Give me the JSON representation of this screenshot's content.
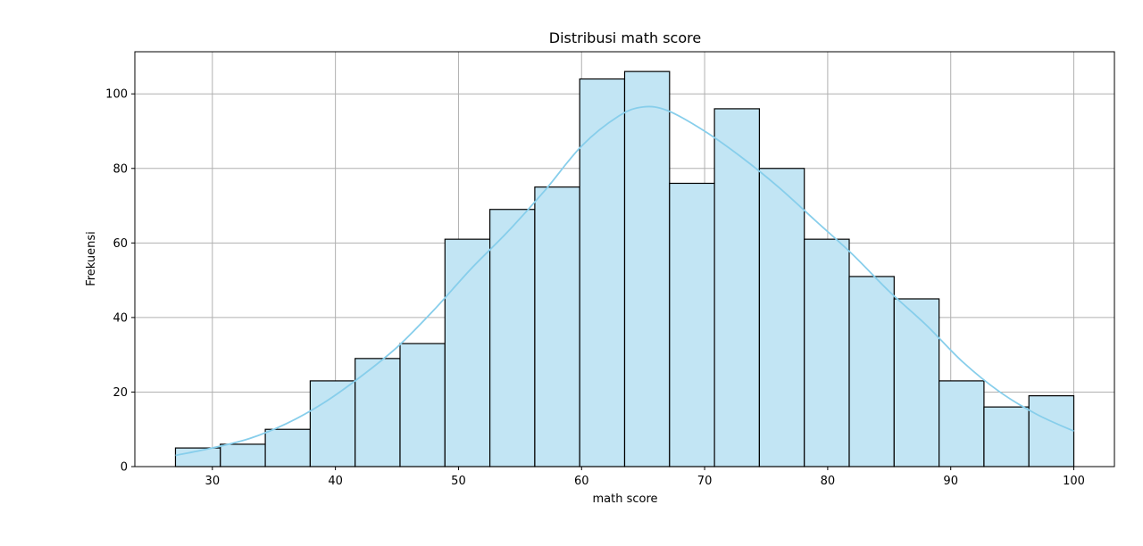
{
  "chart_data": {
    "type": "bar",
    "title": "Distribusi math score",
    "xlabel": "math score",
    "ylabel": "Frekuensi",
    "xlim": [
      23.7,
      103.3
    ],
    "ylim": [
      0,
      111.3
    ],
    "xticks": [
      30,
      40,
      50,
      60,
      70,
      80,
      90,
      100
    ],
    "yticks": [
      0,
      20,
      40,
      60,
      80,
      100
    ],
    "grid": true,
    "bin_edges": [
      27,
      30.65,
      34.3,
      37.95,
      41.6,
      45.25,
      48.9,
      52.55,
      56.2,
      59.85,
      63.5,
      67.15,
      70.8,
      74.45,
      78.1,
      81.75,
      85.4,
      89.05,
      92.7,
      96.35,
      100
    ],
    "values": [
      5,
      6,
      10,
      23,
      29,
      33,
      61,
      69,
      75,
      104,
      106,
      76,
      96,
      80,
      61,
      51,
      45,
      23,
      16,
      19
    ],
    "kde": {
      "x": [
        27,
        30,
        33,
        36,
        39,
        42,
        45,
        48,
        51,
        54,
        57,
        60,
        63,
        65,
        67,
        70,
        73,
        76,
        79,
        82,
        85,
        88,
        91,
        94,
        97,
        100
      ],
      "y": [
        3,
        5,
        7.5,
        11.5,
        17,
        24,
        32,
        42,
        53,
        63,
        74,
        86,
        94,
        96.5,
        95.5,
        90,
        83,
        75,
        66,
        57,
        47,
        38,
        28,
        20,
        14,
        9.5
      ]
    },
    "colors": {
      "bar_fill": "#c2e5f4",
      "bar_edge": "#000000",
      "kde_line": "#87ceeb",
      "grid": "#b0b0b0"
    }
  }
}
